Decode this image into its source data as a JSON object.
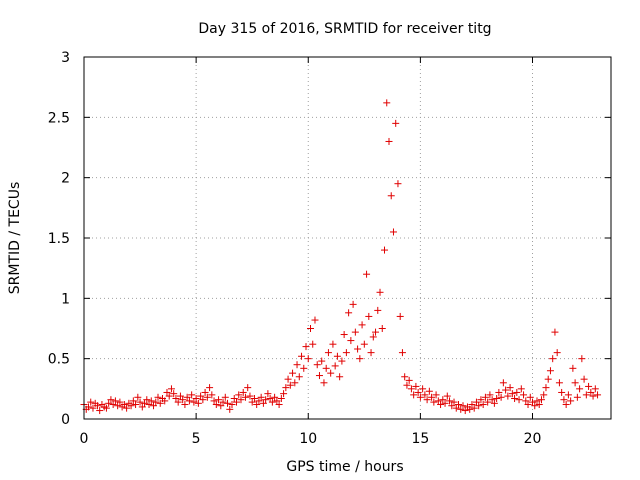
{
  "chart_data": {
    "type": "scatter",
    "title": "Day 315 of 2016, SRMTID for receiver titg",
    "xlabel": "GPS time / hours",
    "ylabel": "SRMTID / TECUs",
    "xlim": [
      0,
      23.5
    ],
    "ylim": [
      0,
      3
    ],
    "xticks": [
      0,
      5,
      10,
      15,
      20
    ],
    "yticks": [
      0,
      0.5,
      1,
      1.5,
      2,
      2.5,
      3
    ],
    "ytick_labels": [
      "0",
      "0.5",
      "1",
      "1.5",
      "2",
      "2.5",
      "3"
    ],
    "grid": true,
    "marker": "+",
    "marker_color": "#e00000",
    "series": [
      {
        "name": "SRMTID",
        "points": [
          [
            0.0,
            0.12
          ],
          [
            0.1,
            0.08
          ],
          [
            0.2,
            0.1
          ],
          [
            0.3,
            0.14
          ],
          [
            0.4,
            0.09
          ],
          [
            0.5,
            0.13
          ],
          [
            0.6,
            0.11
          ],
          [
            0.7,
            0.07
          ],
          [
            0.8,
            0.12
          ],
          [
            0.9,
            0.1
          ],
          [
            1.0,
            0.09
          ],
          [
            1.1,
            0.13
          ],
          [
            1.2,
            0.16
          ],
          [
            1.3,
            0.12
          ],
          [
            1.4,
            0.15
          ],
          [
            1.5,
            0.11
          ],
          [
            1.6,
            0.14
          ],
          [
            1.7,
            0.1
          ],
          [
            1.8,
            0.12
          ],
          [
            1.9,
            0.09
          ],
          [
            2.0,
            0.13
          ],
          [
            2.1,
            0.11
          ],
          [
            2.2,
            0.15
          ],
          [
            2.3,
            0.12
          ],
          [
            2.4,
            0.18
          ],
          [
            2.5,
            0.14
          ],
          [
            2.6,
            0.1
          ],
          [
            2.7,
            0.13
          ],
          [
            2.8,
            0.16
          ],
          [
            2.9,
            0.12
          ],
          [
            3.0,
            0.15
          ],
          [
            3.1,
            0.11
          ],
          [
            3.2,
            0.14
          ],
          [
            3.3,
            0.18
          ],
          [
            3.4,
            0.13
          ],
          [
            3.5,
            0.17
          ],
          [
            3.6,
            0.15
          ],
          [
            3.7,
            0.22
          ],
          [
            3.8,
            0.19
          ],
          [
            3.9,
            0.25
          ],
          [
            4.0,
            0.21
          ],
          [
            4.1,
            0.17
          ],
          [
            4.2,
            0.14
          ],
          [
            4.3,
            0.19
          ],
          [
            4.4,
            0.16
          ],
          [
            4.5,
            0.12
          ],
          [
            4.6,
            0.18
          ],
          [
            4.7,
            0.15
          ],
          [
            4.8,
            0.2
          ],
          [
            4.9,
            0.14
          ],
          [
            5.0,
            0.17
          ],
          [
            5.1,
            0.13
          ],
          [
            5.2,
            0.19
          ],
          [
            5.3,
            0.16
          ],
          [
            5.4,
            0.22
          ],
          [
            5.5,
            0.18
          ],
          [
            5.6,
            0.26
          ],
          [
            5.7,
            0.2
          ],
          [
            5.8,
            0.15
          ],
          [
            5.9,
            0.12
          ],
          [
            6.0,
            0.16
          ],
          [
            6.1,
            0.11
          ],
          [
            6.2,
            0.14
          ],
          [
            6.3,
            0.18
          ],
          [
            6.4,
            0.13
          ],
          [
            6.5,
            0.08
          ],
          [
            6.6,
            0.12
          ],
          [
            6.7,
            0.17
          ],
          [
            6.8,
            0.14
          ],
          [
            6.9,
            0.2
          ],
          [
            7.0,
            0.16
          ],
          [
            7.1,
            0.22
          ],
          [
            7.2,
            0.18
          ],
          [
            7.3,
            0.26
          ],
          [
            7.4,
            0.19
          ],
          [
            7.5,
            0.14
          ],
          [
            7.6,
            0.17
          ],
          [
            7.7,
            0.12
          ],
          [
            7.8,
            0.15
          ],
          [
            7.9,
            0.18
          ],
          [
            8.0,
            0.13
          ],
          [
            8.1,
            0.16
          ],
          [
            8.2,
            0.21
          ],
          [
            8.3,
            0.17
          ],
          [
            8.4,
            0.14
          ],
          [
            8.5,
            0.18
          ],
          [
            8.6,
            0.15
          ],
          [
            8.7,
            0.12
          ],
          [
            8.8,
            0.17
          ],
          [
            8.9,
            0.21
          ],
          [
            9.0,
            0.26
          ],
          [
            9.1,
            0.33
          ],
          [
            9.2,
            0.28
          ],
          [
            9.3,
            0.38
          ],
          [
            9.4,
            0.3
          ],
          [
            9.5,
            0.45
          ],
          [
            9.6,
            0.35
          ],
          [
            9.7,
            0.52
          ],
          [
            9.8,
            0.42
          ],
          [
            9.9,
            0.6
          ],
          [
            10.0,
            0.5
          ],
          [
            10.1,
            0.75
          ],
          [
            10.2,
            0.62
          ],
          [
            10.3,
            0.82
          ],
          [
            10.4,
            0.45
          ],
          [
            10.5,
            0.36
          ],
          [
            10.6,
            0.48
          ],
          [
            10.7,
            0.3
          ],
          [
            10.8,
            0.42
          ],
          [
            10.9,
            0.55
          ],
          [
            11.0,
            0.38
          ],
          [
            11.1,
            0.62
          ],
          [
            11.2,
            0.44
          ],
          [
            11.3,
            0.52
          ],
          [
            11.4,
            0.35
          ],
          [
            11.5,
            0.48
          ],
          [
            11.6,
            0.7
          ],
          [
            11.7,
            0.55
          ],
          [
            11.8,
            0.88
          ],
          [
            11.9,
            0.65
          ],
          [
            12.0,
            0.95
          ],
          [
            12.1,
            0.72
          ],
          [
            12.2,
            0.58
          ],
          [
            12.3,
            0.5
          ],
          [
            12.4,
            0.78
          ],
          [
            12.5,
            0.62
          ],
          [
            12.6,
            1.2
          ],
          [
            12.7,
            0.85
          ],
          [
            12.8,
            0.55
          ],
          [
            12.9,
            0.68
          ],
          [
            13.0,
            0.72
          ],
          [
            13.1,
            0.9
          ],
          [
            13.2,
            1.05
          ],
          [
            13.3,
            0.75
          ],
          [
            13.4,
            1.4
          ],
          [
            13.5,
            2.62
          ],
          [
            13.6,
            2.3
          ],
          [
            13.7,
            1.85
          ],
          [
            13.8,
            1.55
          ],
          [
            13.9,
            2.45
          ],
          [
            14.0,
            1.95
          ],
          [
            14.1,
            0.85
          ],
          [
            14.2,
            0.55
          ],
          [
            14.3,
            0.35
          ],
          [
            14.4,
            0.28
          ],
          [
            14.5,
            0.32
          ],
          [
            14.6,
            0.25
          ],
          [
            14.7,
            0.2
          ],
          [
            14.8,
            0.27
          ],
          [
            14.9,
            0.22
          ],
          [
            15.0,
            0.18
          ],
          [
            15.1,
            0.25
          ],
          [
            15.2,
            0.2
          ],
          [
            15.3,
            0.16
          ],
          [
            15.4,
            0.23
          ],
          [
            15.5,
            0.18
          ],
          [
            15.6,
            0.14
          ],
          [
            15.7,
            0.2
          ],
          [
            15.8,
            0.15
          ],
          [
            15.9,
            0.12
          ],
          [
            16.0,
            0.16
          ],
          [
            16.1,
            0.13
          ],
          [
            16.2,
            0.19
          ],
          [
            16.3,
            0.15
          ],
          [
            16.4,
            0.11
          ],
          [
            16.5,
            0.14
          ],
          [
            16.6,
            0.09
          ],
          [
            16.7,
            0.12
          ],
          [
            16.8,
            0.08
          ],
          [
            16.9,
            0.11
          ],
          [
            17.0,
            0.07
          ],
          [
            17.1,
            0.1
          ],
          [
            17.2,
            0.08
          ],
          [
            17.3,
            0.12
          ],
          [
            17.4,
            0.09
          ],
          [
            17.5,
            0.14
          ],
          [
            17.6,
            0.11
          ],
          [
            17.7,
            0.16
          ],
          [
            17.8,
            0.12
          ],
          [
            17.9,
            0.18
          ],
          [
            18.0,
            0.14
          ],
          [
            18.1,
            0.2
          ],
          [
            18.2,
            0.16
          ],
          [
            18.3,
            0.13
          ],
          [
            18.4,
            0.17
          ],
          [
            18.5,
            0.22
          ],
          [
            18.6,
            0.18
          ],
          [
            18.7,
            0.3
          ],
          [
            18.8,
            0.24
          ],
          [
            18.9,
            0.19
          ],
          [
            19.0,
            0.26
          ],
          [
            19.1,
            0.21
          ],
          [
            19.2,
            0.17
          ],
          [
            19.3,
            0.22
          ],
          [
            19.4,
            0.16
          ],
          [
            19.5,
            0.25
          ],
          [
            19.6,
            0.2
          ],
          [
            19.7,
            0.15
          ],
          [
            19.8,
            0.12
          ],
          [
            19.9,
            0.18
          ],
          [
            20.0,
            0.14
          ],
          [
            20.1,
            0.11
          ],
          [
            20.2,
            0.15
          ],
          [
            20.3,
            0.12
          ],
          [
            20.4,
            0.16
          ],
          [
            20.5,
            0.2
          ],
          [
            20.6,
            0.26
          ],
          [
            20.7,
            0.33
          ],
          [
            20.8,
            0.4
          ],
          [
            20.9,
            0.5
          ],
          [
            21.0,
            0.72
          ],
          [
            21.1,
            0.55
          ],
          [
            21.2,
            0.3
          ],
          [
            21.3,
            0.22
          ],
          [
            21.4,
            0.16
          ],
          [
            21.5,
            0.12
          ],
          [
            21.6,
            0.2
          ],
          [
            21.7,
            0.15
          ],
          [
            21.8,
            0.42
          ],
          [
            21.9,
            0.3
          ],
          [
            22.0,
            0.18
          ],
          [
            22.1,
            0.25
          ],
          [
            22.2,
            0.5
          ],
          [
            22.3,
            0.33
          ],
          [
            22.4,
            0.2
          ],
          [
            22.5,
            0.27
          ],
          [
            22.6,
            0.22
          ],
          [
            22.7,
            0.19
          ],
          [
            22.8,
            0.25
          ],
          [
            22.9,
            0.2
          ]
        ]
      }
    ]
  }
}
